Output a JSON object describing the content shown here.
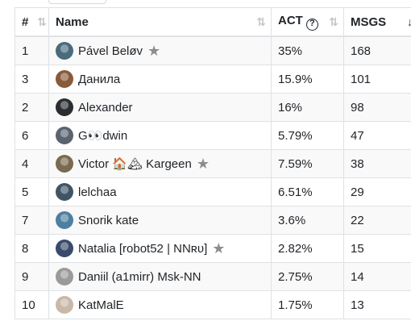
{
  "table": {
    "headers": {
      "rank": "#",
      "name": "Name",
      "act": "ACT",
      "msgs": "MSGS"
    },
    "sort_glyph": "⇅",
    "sort_active_glyph": "↓",
    "help_glyph": "?",
    "star_glyph": "★",
    "rows": [
      {
        "rank": "1",
        "name": "Pável Beløv",
        "act": "35%",
        "msgs": "168",
        "starred": true,
        "avatar_color": "#4a6b7c"
      },
      {
        "rank": "3",
        "name": "Данила",
        "act": "15.9%",
        "msgs": "101",
        "starred": false,
        "avatar_color": "#8a5a3c"
      },
      {
        "rank": "2",
        "name": "Alexander",
        "act": "16%",
        "msgs": "98",
        "starred": false,
        "avatar_color": "#2a2e33"
      },
      {
        "rank": "6",
        "name": "G👀dwin",
        "act": "5.79%",
        "msgs": "47",
        "starred": false,
        "avatar_color": "#5a6470"
      },
      {
        "rank": "4",
        "name": "Victor 🏠🏔 Kargeen",
        "act": "7.59%",
        "msgs": "38",
        "starred": true,
        "avatar_color": "#7a6a4f"
      },
      {
        "rank": "5",
        "name": "lelchaa",
        "act": "6.51%",
        "msgs": "29",
        "starred": false,
        "avatar_color": "#3f5566"
      },
      {
        "rank": "7",
        "name": "Snorik kate",
        "act": "3.6%",
        "msgs": "22",
        "starred": false,
        "avatar_color": "#4d7fa0"
      },
      {
        "rank": "8",
        "name": "Natalia [robot52 | NNʀᴜ]",
        "act": "2.82%",
        "msgs": "15",
        "starred": true,
        "avatar_color": "#3a4a6a"
      },
      {
        "rank": "9",
        "name": "Daniil (a1mirr) Msk-NN",
        "act": "2.75%",
        "msgs": "14",
        "starred": false,
        "avatar_color": "#9a9a9a"
      },
      {
        "rank": "10",
        "name": "KatMalE",
        "act": "1.75%",
        "msgs": "13",
        "starred": false,
        "avatar_color": "#c9b8a8"
      }
    ]
  }
}
